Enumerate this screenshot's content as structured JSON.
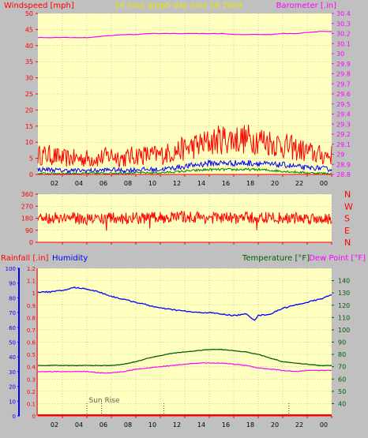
{
  "header": {
    "left_label": "Windspeed [mph]",
    "center_label": "24 hour graph day   June 18 2024",
    "right_label": "Barometer [.in]"
  },
  "colors": {
    "plot_bg": "#ffffc0",
    "frame_bg": "#c0c0c0",
    "axis_red": "#ff0000",
    "baro": "#ff00ff",
    "gust": "#ff0000",
    "wind": "#0000ff",
    "green": "#008000",
    "title_yellow": "#e8e800",
    "humidity": "#0000ff",
    "temperature": "#006000",
    "dewpoint": "#ff00ff",
    "direction": "#ff0000"
  },
  "time_axis": {
    "tick_labels": [
      "02",
      "04",
      "06",
      "08",
      "10",
      "12",
      "14",
      "16",
      "18",
      "20",
      "22",
      "00"
    ],
    "hours": [
      2,
      4,
      6,
      8,
      10,
      12,
      14,
      16,
      18,
      20,
      22,
      24
    ]
  },
  "sunrise_label": "Sun Rise",
  "chart_data": [
    {
      "type": "line",
      "id": "wind_baro",
      "title": "24 hour graph day   June 18 2024",
      "ylabel_left": "Windspeed [mph]",
      "ylabel_right": "Barometer [.in]",
      "x_range_hours": [
        0,
        24
      ],
      "y_left_range": [
        0,
        50
      ],
      "y_left_ticks": [
        0,
        5,
        10,
        15,
        20,
        25,
        30,
        35,
        40,
        45,
        50
      ],
      "y_right_range": [
        28.8,
        30.4
      ],
      "y_right_ticks": [
        "28.8",
        "28.9",
        "29",
        "29.1",
        "29.2",
        "29.3",
        "29.4",
        "29.5",
        "29.6",
        "29.7",
        "29.8",
        "29.9",
        "30",
        "30.1",
        "30.2",
        "30.3",
        "30.4"
      ],
      "grid": true,
      "series": [
        {
          "key": "barometer",
          "axis": "right",
          "x": [
            0,
            1,
            2,
            3,
            4,
            5,
            6,
            7,
            8,
            9,
            10,
            11,
            12,
            13,
            14,
            15,
            16,
            17,
            18,
            19,
            20,
            21,
            22,
            23,
            24
          ],
          "values": [
            30.16,
            30.16,
            30.16,
            30.16,
            30.16,
            30.17,
            30.18,
            30.19,
            30.19,
            30.2,
            30.2,
            30.2,
            30.2,
            30.2,
            30.2,
            30.2,
            30.19,
            30.19,
            30.19,
            30.19,
            30.2,
            30.2,
            30.21,
            30.22,
            30.22
          ]
        },
        {
          "key": "wind_gust",
          "axis": "left",
          "x": [
            0,
            1,
            2,
            3,
            4,
            5,
            6,
            7,
            8,
            9,
            10,
            11,
            12,
            13,
            14,
            15,
            16,
            17,
            18,
            19,
            20,
            21,
            22,
            23,
            24
          ],
          "values": [
            6,
            6,
            5,
            5,
            5,
            5,
            6,
            5,
            6,
            6,
            6,
            7,
            8,
            9,
            10,
            11,
            11,
            11,
            11,
            10,
            9,
            8,
            7,
            6,
            6
          ]
        },
        {
          "key": "wind_speed",
          "axis": "left",
          "x": [
            0,
            1,
            2,
            3,
            4,
            5,
            6,
            7,
            8,
            9,
            10,
            11,
            12,
            13,
            14,
            15,
            16,
            17,
            18,
            19,
            20,
            21,
            22,
            23,
            24
          ],
          "values": [
            1.5,
            1.5,
            1.2,
            1.2,
            1.2,
            1.2,
            1.5,
            1.2,
            1.5,
            1.5,
            1.5,
            2,
            2.5,
            3,
            3.5,
            3.5,
            3.5,
            3.5,
            3.5,
            3,
            3,
            2.5,
            2,
            2,
            1.5
          ]
        },
        {
          "key": "wind_low",
          "axis": "left",
          "x": [
            0,
            4,
            8,
            10,
            12,
            14,
            16,
            18,
            20,
            22,
            24
          ],
          "values": [
            0.3,
            0.3,
            0.5,
            0.5,
            1,
            1.5,
            1.5,
            1.5,
            1,
            0.5,
            0.3
          ]
        }
      ]
    },
    {
      "type": "line",
      "id": "direction",
      "ylabel_right_letters": [
        "N",
        "W",
        "S",
        "E",
        "N"
      ],
      "x_range_hours": [
        0,
        24
      ],
      "y_range": [
        0,
        360
      ],
      "y_ticks": [
        0,
        90,
        180,
        270,
        360
      ],
      "grid": true,
      "series": [
        {
          "key": "wind_direction",
          "x": [
            0,
            2,
            4,
            6,
            8,
            10,
            12,
            14,
            16,
            18,
            20,
            22,
            24
          ],
          "values": [
            180,
            185,
            175,
            180,
            180,
            185,
            190,
            185,
            180,
            185,
            180,
            180,
            180
          ]
        }
      ]
    },
    {
      "type": "line",
      "id": "rain_hum_temp",
      "ylabel_rain": "Rainfall [.in]",
      "ylabel_humidity": "Humidity",
      "ylabel_temp": "Temperature [°F]",
      "ylabel_dew": "Dew Point [°F]",
      "x_range_hours": [
        0,
        24
      ],
      "humidity_range": [
        0,
        100
      ],
      "humidity_ticks": [
        0,
        10,
        20,
        30,
        40,
        50,
        60,
        70,
        80,
        90,
        100
      ],
      "rain_range": [
        0,
        1.2
      ],
      "rain_ticks": [
        "0",
        "0.1",
        "0.2",
        "0.3",
        "0.4",
        "0.5",
        "0.6",
        "0.7",
        "0.8",
        "0.9",
        "1",
        "1.1",
        "1.2"
      ],
      "temp_range": [
        30,
        150
      ],
      "temp_ticks": [
        40,
        50,
        60,
        70,
        80,
        90,
        100,
        110,
        120,
        130,
        140
      ],
      "grid": true,
      "series": [
        {
          "key": "humidity",
          "axis": "humidity",
          "x": [
            0,
            1,
            2,
            3,
            4,
            5,
            6,
            7,
            8,
            9,
            10,
            11,
            12,
            13,
            14,
            15,
            16,
            17,
            17.7,
            18,
            19,
            20,
            21,
            22,
            23,
            24
          ],
          "values": [
            84,
            84,
            85,
            87,
            86,
            84,
            81,
            79,
            77,
            75,
            73,
            72,
            71,
            70,
            70,
            69,
            68,
            69,
            65,
            68,
            69,
            73,
            75,
            77,
            79,
            82
          ]
        },
        {
          "key": "temperature",
          "axis": "temp",
          "x": [
            0,
            1,
            2,
            3,
            4,
            5,
            6,
            7,
            8,
            9,
            10,
            11,
            12,
            13,
            14,
            15,
            16,
            17,
            18,
            19,
            20,
            21,
            22,
            23,
            24
          ],
          "values": [
            71,
            71,
            71,
            71,
            71,
            71,
            71,
            72,
            74,
            77,
            79,
            81,
            82,
            83,
            84,
            84,
            83,
            82,
            80,
            77,
            74,
            73,
            72,
            71,
            71
          ]
        },
        {
          "key": "dew_point",
          "axis": "temp",
          "x": [
            0,
            1,
            2,
            3,
            4,
            5,
            6,
            7,
            8,
            9,
            10,
            11,
            12,
            13,
            14,
            15,
            16,
            17,
            18,
            19,
            20,
            21,
            22,
            23,
            24
          ],
          "values": [
            66,
            66,
            66,
            66,
            66,
            65,
            65,
            66,
            68,
            69,
            70,
            71,
            72,
            73,
            73,
            73,
            72,
            71,
            69,
            68,
            67,
            66,
            67,
            67,
            67
          ]
        },
        {
          "key": "rainfall",
          "axis": "rain",
          "x": [
            0,
            24
          ],
          "values": [
            0,
            0
          ]
        }
      ],
      "markers_hours": [
        4,
        5.2,
        10.3,
        20.5
      ]
    }
  ]
}
